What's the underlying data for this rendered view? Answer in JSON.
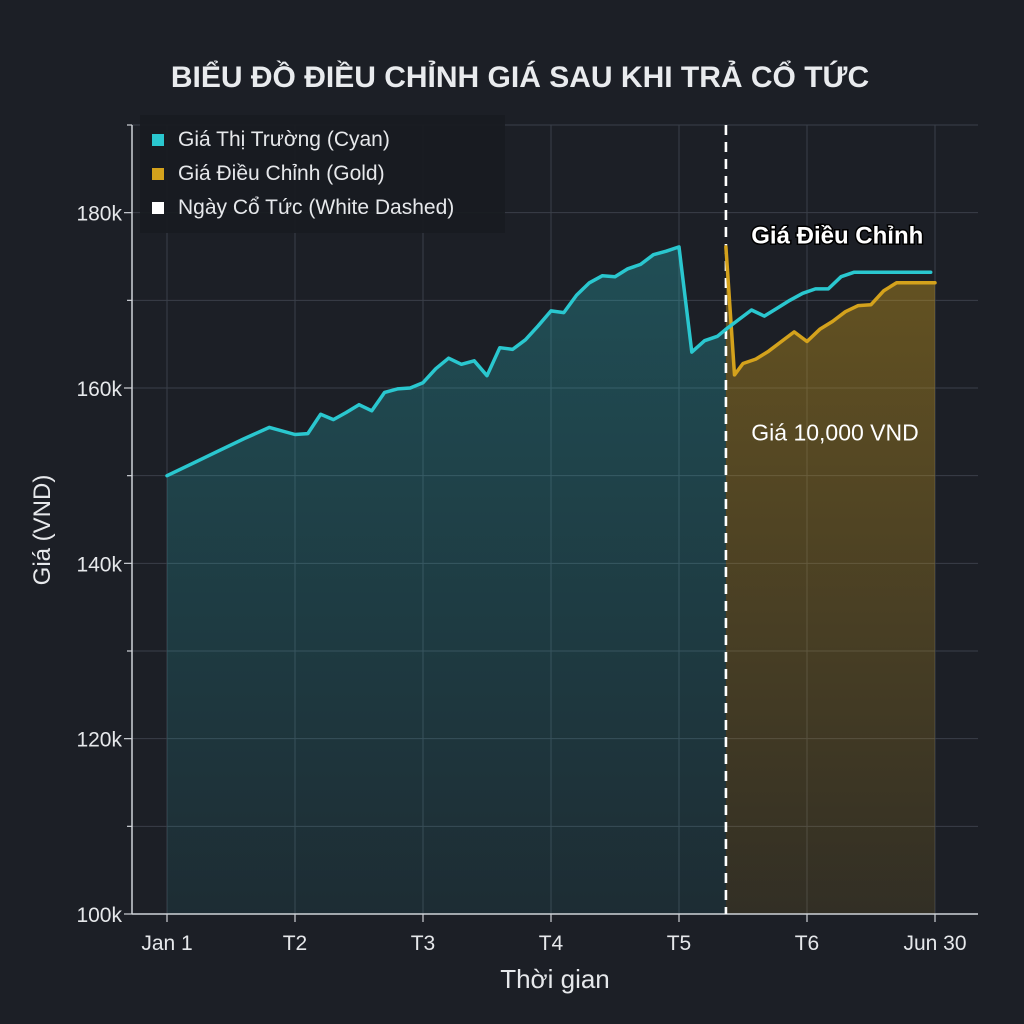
{
  "chart_data": {
    "type": "line",
    "title": "BIỂU ĐỒ ĐIỀU CHỈNH GIÁ SAU KHI TRẢ CỔ TỨC",
    "xlabel": "Thời gian",
    "ylabel": "Giá (VND)",
    "xlim": [
      0,
      180
    ],
    "ylim": [
      100000,
      190000
    ],
    "x_ticks": [
      {
        "value": 0,
        "label": "Jan 1"
      },
      {
        "value": 30,
        "label": "T2"
      },
      {
        "value": 60,
        "label": "T3"
      },
      {
        "value": 90,
        "label": "T4"
      },
      {
        "value": 120,
        "label": "T5"
      },
      {
        "value": 150,
        "label": "T6"
      },
      {
        "value": 180,
        "label": "Jun 30"
      }
    ],
    "y_ticks": [
      {
        "value": 100000,
        "label": "100k"
      },
      {
        "value": 120000,
        "label": "120k"
      },
      {
        "value": 140000,
        "label": "140k"
      },
      {
        "value": 160000,
        "label": "160k"
      },
      {
        "value": 180000,
        "label": "180k"
      }
    ],
    "grid": true,
    "legend_position": "top-left",
    "dividend_date_x": 131,
    "series": [
      {
        "name": "Giá Thị Trường (Cyan)",
        "color": "#2ac7cf",
        "x": [
          0,
          6,
          12,
          18,
          24,
          30,
          33,
          36,
          39,
          42,
          45,
          48,
          51,
          54,
          57,
          60,
          63,
          66,
          69,
          72,
          75,
          78,
          81,
          84,
          87,
          90,
          93,
          96,
          99,
          102,
          105,
          108,
          111,
          114,
          117,
          120,
          123,
          126,
          129,
          131,
          134,
          137,
          140,
          143,
          146,
          149,
          152,
          155,
          158,
          161,
          164,
          167,
          170,
          173,
          176,
          179
        ],
        "y": [
          150000,
          151400,
          152800,
          154200,
          155500,
          154700,
          154800,
          157000,
          156400,
          157200,
          158100,
          157400,
          159500,
          159900,
          160000,
          160600,
          162200,
          163400,
          162700,
          163100,
          161400,
          164600,
          164400,
          165500,
          167100,
          168800,
          168600,
          170600,
          172000,
          172800,
          172700,
          173600,
          174100,
          175200,
          175600,
          176100,
          164100,
          165400,
          165900,
          166700,
          167800,
          168900,
          168200,
          169100,
          170000,
          170800,
          171300,
          171300,
          172700,
          173200,
          173200,
          173200,
          173200,
          173200,
          173200,
          173200
        ]
      },
      {
        "name": "Giá Điều Chỉnh (Gold)",
        "color": "#d4a21c",
        "x": [
          131,
          133,
          135,
          138,
          141,
          144,
          147,
          150,
          153,
          156,
          159,
          162,
          165,
          168,
          171,
          174,
          177,
          180
        ],
        "y": [
          176100,
          161500,
          162800,
          163300,
          164200,
          165300,
          166400,
          165300,
          166700,
          167600,
          168700,
          169400,
          169500,
          171100,
          172000,
          172000,
          172000,
          172000
        ]
      },
      {
        "name": "Ngày Cổ Tức (White Dashed)",
        "color": "#ffffff"
      }
    ],
    "annotations": [
      {
        "text": "Giá Điều Chỉnh",
        "x": 136,
        "y": 176500,
        "bold": true
      },
      {
        "text": "Giá 10,000 VND",
        "x": 136,
        "y": 154000,
        "bold": false
      }
    ]
  },
  "colors": {
    "background": "#1c1f26",
    "grid": "#3a3f49",
    "axis": "#cfd3d8",
    "text": "#e6e8eb",
    "cyan": "#2ac7cf",
    "gold": "#d4a21c",
    "dashed": "#ffffff"
  }
}
